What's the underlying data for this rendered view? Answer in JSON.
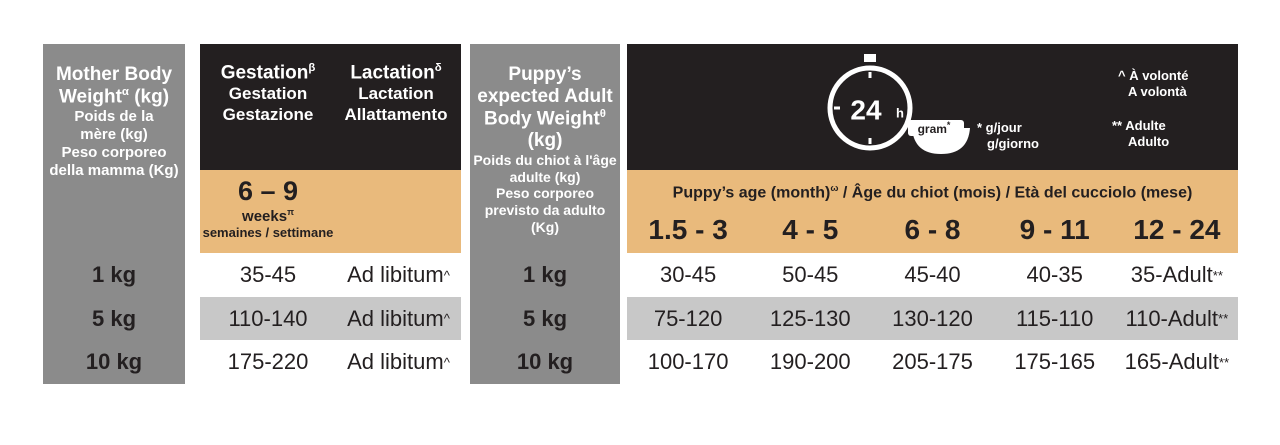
{
  "mother_header": {
    "title": "Mother Body Weight",
    "title_sup": "α",
    "title_unit": "(kg)",
    "title_fr": "Poids de la mère (kg)",
    "title_it": "Peso corporeo della mamma (Kg)"
  },
  "mother_weights": [
    "1 kg",
    "5 kg",
    "10 kg"
  ],
  "gestation": {
    "label": "Gestation",
    "sup": "β",
    "fr": "Gestation",
    "it": "Gestazione"
  },
  "lactation": {
    "label": "Lactation",
    "sup": "δ",
    "fr": "Lactation",
    "it": "Allattamento"
  },
  "gestation_period": {
    "range": "6 – 9",
    "unit": "weeks",
    "sup": "π",
    "fr_it": "semaines / settimane"
  },
  "mother_rows": [
    {
      "gestation": "35-45",
      "lactation": "Ad libitum",
      "lactation_sup": "^"
    },
    {
      "gestation": "110-140",
      "lactation": "Ad libitum",
      "lactation_sup": "^"
    },
    {
      "gestation": "175-220",
      "lactation": "Ad libitum",
      "lactation_sup": "^"
    }
  ],
  "puppy_header": {
    "title": "Puppy’s expected Adult Body Weight",
    "title_sup": "θ",
    "title_unit": "(kg)",
    "title_fr": "Poids du chiot à l'âge adulte (kg)",
    "title_it": "Peso corporeo previsto da adulto (Kg)"
  },
  "puppy_weights": [
    "1 kg",
    "5 kg",
    "10 kg"
  ],
  "legend": {
    "clock": "24",
    "clock_unit": "h",
    "bowl": "gram",
    "bowl_sup": "*",
    "per_day": [
      "* g/jour",
      "g/giorno"
    ],
    "ad_libitum": [
      "^ À volonté",
      "A volontà"
    ],
    "adult": [
      "** Adulte",
      "Adulto"
    ]
  },
  "age_header": {
    "en": "Puppy’s age (month)",
    "sup": "ω",
    "separator": "/",
    "fr": "Âge du chiot (mois)",
    "it": "Età del cucciolo (mese)"
  },
  "ages": [
    "1.5 - 3",
    "4 - 5",
    "6 - 8",
    "9 - 11",
    "12 - 24"
  ],
  "puppy_rows": [
    {
      "values": [
        "30-45",
        "50-45",
        "45-40",
        "40-35",
        "35-Adult"
      ],
      "last_sup": "**"
    },
    {
      "values": [
        "75-120",
        "125-130",
        "130-120",
        "115-110",
        "110-Adult"
      ],
      "last_sup": "**"
    },
    {
      "values": [
        "100-170",
        "190-200",
        "205-175",
        "175-165",
        "165-Adult"
      ],
      "last_sup": "**"
    }
  ]
}
